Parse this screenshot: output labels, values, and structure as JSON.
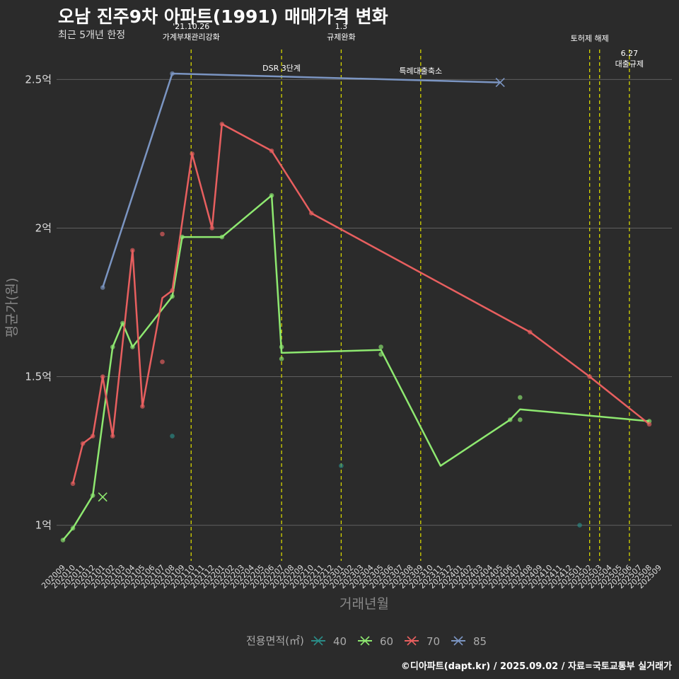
{
  "title": "오남 진주9차 아파트(1991) 매매가격 변화",
  "subtitle": "최근 5개년 한정",
  "caption": "©디아파트(dapt.kr) / 2025.09.02 / 자료=국토교통부 실거래가",
  "chart_data": {
    "type": "line",
    "xlabel": "거래년월",
    "ylabel": "평균가(원)",
    "ylim": [
      0.88,
      2.62
    ],
    "yticks": [
      {
        "value": 1.0,
        "label": "1억"
      },
      {
        "value": 1.5,
        "label": "1.5억"
      },
      {
        "value": 2.0,
        "label": "2억"
      },
      {
        "value": 2.5,
        "label": "2.5억"
      }
    ],
    "categories": [
      "202009",
      "202010",
      "202011",
      "202012",
      "202101",
      "202102",
      "202103",
      "202104",
      "202105",
      "202106",
      "202107",
      "202108",
      "202109",
      "202110",
      "202111",
      "202112",
      "202201",
      "202202",
      "202203",
      "202204",
      "202205",
      "202206",
      "202207",
      "202208",
      "202209",
      "202210",
      "202211",
      "202212",
      "202301",
      "202302",
      "202303",
      "202304",
      "202305",
      "202306",
      "202307",
      "202308",
      "202309",
      "202310",
      "202311",
      "202312",
      "202401",
      "202402",
      "202403",
      "202404",
      "202405",
      "202406",
      "202407",
      "202408",
      "202409",
      "202410",
      "202411",
      "202412",
      "202501",
      "202502",
      "202503",
      "202504",
      "202505",
      "202506",
      "202507",
      "202508",
      "202509"
    ],
    "series": [
      {
        "name": "40",
        "color": "#2a8c87",
        "line": [],
        "points": [
          [
            11,
            1.3
          ],
          [
            28,
            1.2
          ],
          [
            52,
            1.0
          ]
        ],
        "crosses": []
      },
      {
        "name": "60",
        "color": "#8ee870",
        "line": [
          [
            0,
            0.95
          ],
          [
            1,
            0.99
          ],
          [
            3,
            1.1
          ],
          [
            5,
            1.6
          ],
          [
            6,
            1.68
          ],
          [
            7,
            1.6
          ],
          [
            11,
            1.77
          ],
          [
            12,
            1.97
          ],
          [
            16,
            1.97
          ],
          [
            21,
            2.11
          ],
          [
            22,
            1.58
          ],
          [
            32,
            1.59
          ],
          [
            38,
            1.2
          ],
          [
            45,
            1.355
          ],
          [
            46,
            1.39
          ],
          [
            59,
            1.35
          ]
        ],
        "points": [
          [
            0,
            0.95
          ],
          [
            1,
            0.99
          ],
          [
            3,
            1.1
          ],
          [
            5,
            1.6
          ],
          [
            6,
            1.68
          ],
          [
            7,
            1.6
          ],
          [
            11,
            1.77
          ],
          [
            12,
            1.97
          ],
          [
            16,
            1.97
          ],
          [
            21,
            2.11
          ],
          [
            22,
            1.6
          ],
          [
            22,
            1.56
          ],
          [
            32,
            1.6
          ],
          [
            32,
            1.575
          ],
          [
            45,
            1.355
          ],
          [
            46,
            1.43
          ],
          [
            46,
            1.355
          ],
          [
            59,
            1.35
          ]
        ],
        "crosses": [
          [
            4,
            1.095
          ]
        ]
      },
      {
        "name": "70",
        "color": "#e85f5f",
        "line": [
          [
            1,
            1.14
          ],
          [
            2,
            1.275
          ],
          [
            3,
            1.3
          ],
          [
            4,
            1.5
          ],
          [
            5,
            1.3
          ],
          [
            7,
            1.925
          ],
          [
            8,
            1.4
          ],
          [
            10,
            1.765
          ],
          [
            11,
            1.79
          ],
          [
            13,
            2.25
          ],
          [
            15,
            2.0
          ],
          [
            16,
            2.35
          ],
          [
            21,
            2.26
          ],
          [
            25,
            2.05
          ],
          [
            47,
            1.65
          ],
          [
            53,
            1.5
          ],
          [
            59,
            1.34
          ]
        ],
        "points": [
          [
            1,
            1.14
          ],
          [
            2,
            1.275
          ],
          [
            3,
            1.3
          ],
          [
            4,
            1.5
          ],
          [
            5,
            1.3
          ],
          [
            7,
            1.925
          ],
          [
            8,
            1.4
          ],
          [
            10,
            1.98
          ],
          [
            10,
            1.55
          ],
          [
            11,
            1.79
          ],
          [
            13,
            2.25
          ],
          [
            15,
            2.0
          ],
          [
            16,
            2.35
          ],
          [
            21,
            2.26
          ],
          [
            25,
            2.05
          ],
          [
            47,
            1.65
          ],
          [
            53,
            1.5
          ],
          [
            59,
            1.34
          ]
        ],
        "crosses": []
      },
      {
        "name": "85",
        "color": "#7b95c2",
        "line": [
          [
            4,
            1.8
          ],
          [
            11,
            2.52
          ],
          [
            44,
            2.49
          ]
        ],
        "points": [
          [
            4,
            1.8
          ],
          [
            11,
            2.52
          ]
        ],
        "crosses": [
          [
            44,
            2.49
          ]
        ]
      }
    ],
    "events": [
      {
        "x": 12.9,
        "label": [
          "'21.10.26",
          "가계부채관리강화"
        ],
        "label_y": 2.67
      },
      {
        "x": 22.0,
        "label": [
          "DSR 3단계"
        ],
        "label_y": 2.53
      },
      {
        "x": 28.0,
        "label": [
          "1.3",
          "규제완화"
        ],
        "label_y": 2.67
      },
      {
        "x": 36.0,
        "label": [
          "특례대출축소"
        ],
        "label_y": 2.52
      },
      {
        "x": 53.0,
        "label": [
          "토허제 해제"
        ],
        "label_y": 2.63
      },
      {
        "x": 54.0,
        "label": [],
        "label_y": 2.6
      },
      {
        "x": 57.0,
        "label": [
          "6.27",
          "대출규제"
        ],
        "label_y": 2.58
      }
    ],
    "legend_title": "전용면적(㎡)",
    "legend_position": "bottom"
  }
}
